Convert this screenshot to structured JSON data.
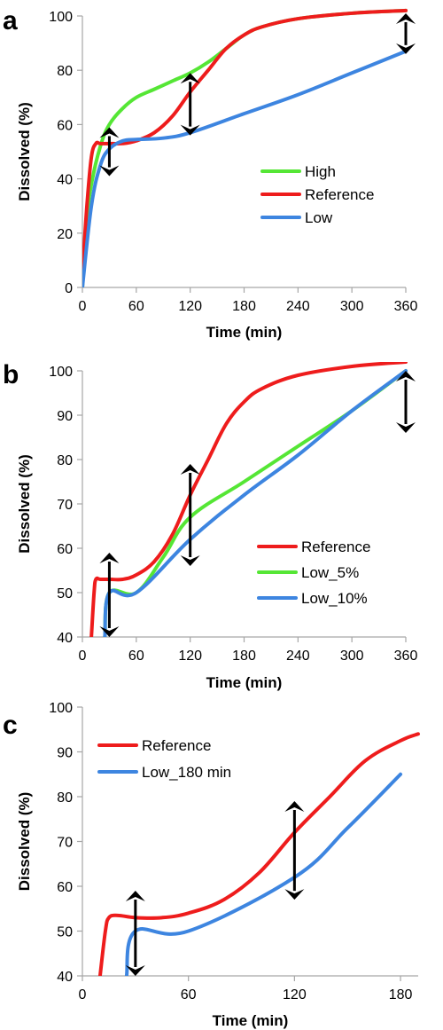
{
  "colors": {
    "high": "#55e635",
    "reference": "#ee1c1c",
    "low": "#3d85e0",
    "arrow": "#000000"
  },
  "chart_data": [
    {
      "panel": "a",
      "type": "line",
      "xlabel": "Time (min)",
      "ylabel": "Dissolved (%)",
      "xlim": [
        0,
        360
      ],
      "ylim": [
        0,
        100
      ],
      "xticks": [
        0,
        60,
        120,
        180,
        240,
        300,
        360
      ],
      "yticks": [
        0,
        20,
        40,
        60,
        80,
        100
      ],
      "legend_position": "center-right",
      "series": [
        {
          "name": "High",
          "color": "#55e635",
          "x": [
            0,
            5,
            10,
            20,
            30,
            45,
            60,
            80,
            100,
            120,
            140,
            160,
            180,
            200,
            240,
            300,
            360
          ],
          "y": [
            0,
            25,
            38,
            52,
            60,
            66,
            70,
            73,
            76,
            79,
            83,
            88,
            93,
            96,
            99,
            101,
            102
          ]
        },
        {
          "name": "Reference",
          "color": "#ee1c1c",
          "x": [
            0,
            5,
            10,
            15,
            20,
            30,
            45,
            60,
            80,
            100,
            120,
            140,
            160,
            180,
            200,
            240,
            300,
            360
          ],
          "y": [
            5,
            30,
            48,
            53,
            53,
            53,
            53,
            54,
            57,
            63,
            72,
            80,
            88,
            93,
            96,
            99,
            101,
            102
          ]
        },
        {
          "name": "Low",
          "color": "#3d85e0",
          "x": [
            0,
            10,
            20,
            30,
            45,
            60,
            90,
            120,
            180,
            240,
            300,
            360
          ],
          "y": [
            0,
            30,
            45,
            51,
            54,
            54.5,
            55,
            57,
            64,
            71,
            79,
            87
          ]
        }
      ],
      "arrows": [
        {
          "x": 30,
          "y1": 41,
          "y2": 59
        },
        {
          "x": 120,
          "y1": 56,
          "y2": 79
        },
        {
          "x": 360,
          "y1": 86,
          "y2": 101
        }
      ]
    },
    {
      "panel": "b",
      "type": "line",
      "xlabel": "Time (min)",
      "ylabel": "Dissolved (%)",
      "xlim": [
        0,
        360
      ],
      "ylim": [
        40,
        100
      ],
      "xticks": [
        0,
        60,
        120,
        180,
        240,
        300,
        360
      ],
      "yticks": [
        40,
        50,
        60,
        70,
        80,
        90,
        100
      ],
      "legend_position": "center-right",
      "series": [
        {
          "name": "Reference",
          "color": "#ee1c1c",
          "x": [
            10,
            13,
            15,
            20,
            30,
            45,
            60,
            80,
            100,
            120,
            140,
            160,
            180,
            200,
            240,
            300,
            360
          ],
          "y": [
            40,
            50,
            53,
            53,
            53,
            53,
            54,
            57,
            63,
            72,
            80,
            88,
            93,
            96,
            99,
            101,
            102
          ]
        },
        {
          "name": "Low_5%",
          "color": "#55e635",
          "x": [
            25,
            30,
            60,
            90,
            120,
            180,
            240,
            300,
            360
          ],
          "y": [
            40,
            50,
            50,
            58,
            67,
            75,
            83,
            91,
            100
          ]
        },
        {
          "name": "Low_10%",
          "color": "#3d85e0",
          "x": [
            25,
            30,
            60,
            120,
            180,
            240,
            300,
            360
          ],
          "y": [
            40,
            50,
            50,
            62,
            72,
            81,
            91,
            100
          ]
        }
      ],
      "arrows": [
        {
          "x": 30,
          "y1": 40,
          "y2": 59
        },
        {
          "x": 120,
          "y1": 56,
          "y2": 79
        },
        {
          "x": 360,
          "y1": 86,
          "y2": 100
        }
      ]
    },
    {
      "panel": "c",
      "type": "line",
      "xlabel": "Time (min)",
      "ylabel": "Dissolved (%)",
      "xlim": [
        0,
        190
      ],
      "ylim": [
        40,
        100
      ],
      "xticks": [
        0,
        60,
        120,
        180
      ],
      "yticks": [
        40,
        50,
        60,
        70,
        80,
        90,
        100
      ],
      "legend_position": "top-left",
      "series": [
        {
          "name": "Reference",
          "color": "#ee1c1c",
          "x": [
            10,
            13,
            15,
            20,
            30,
            45,
            60,
            80,
            100,
            120,
            140,
            160,
            180,
            190
          ],
          "y": [
            40,
            50,
            53,
            53.5,
            53,
            53,
            54,
            57,
            63,
            72,
            80,
            88,
            92.5,
            94
          ]
        },
        {
          "name": "Low_180 min",
          "color": "#3d85e0",
          "x": [
            25,
            30,
            60,
            120,
            150,
            180
          ],
          "y": [
            40,
            50,
            50,
            62,
            73,
            85
          ]
        }
      ],
      "arrows": [
        {
          "x": 30,
          "y1": 40,
          "y2": 59
        },
        {
          "x": 120,
          "y1": 57,
          "y2": 79
        }
      ]
    }
  ]
}
